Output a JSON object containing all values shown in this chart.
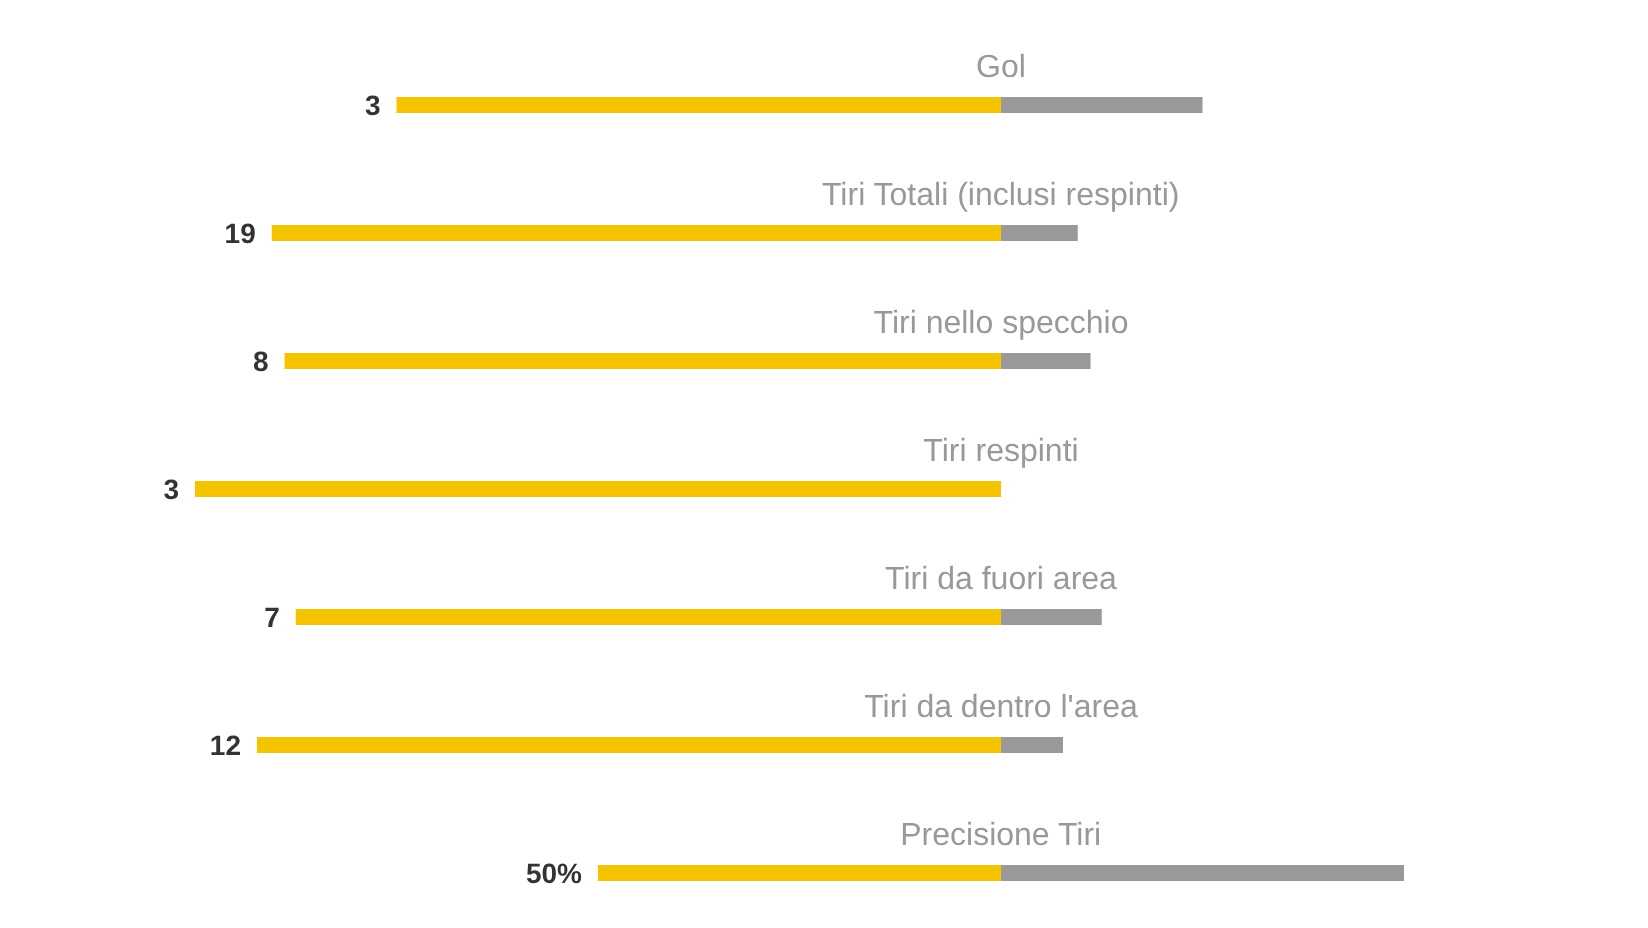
{
  "chart_data": [
    {
      "type": "bar",
      "orientation": "horizontal",
      "stacked": true,
      "categories": [
        "Gol"
      ],
      "series": [
        {
          "color": "#f5c400",
          "values": [
            3
          ],
          "value_labels": [
            "3"
          ]
        },
        {
          "color": "#999999",
          "values": [
            1
          ]
        }
      ]
    },
    {
      "type": "bar",
      "orientation": "horizontal",
      "stacked": true,
      "categories": [
        "Tiri Totali (inclusi respinti)"
      ],
      "series": [
        {
          "color": "#f5c400",
          "values": [
            19
          ],
          "value_labels": [
            "19"
          ]
        },
        {
          "color": "#999999",
          "values": [
            2
          ]
        }
      ]
    },
    {
      "type": "bar",
      "orientation": "horizontal",
      "stacked": true,
      "categories": [
        "Tiri nello specchio"
      ],
      "series": [
        {
          "color": "#f5c400",
          "values": [
            8
          ],
          "value_labels": [
            "8"
          ]
        },
        {
          "color": "#999999",
          "values": [
            1
          ]
        }
      ]
    },
    {
      "type": "bar",
      "orientation": "horizontal",
      "stacked": true,
      "categories": [
        "Tiri respinti"
      ],
      "series": [
        {
          "color": "#f5c400",
          "values": [
            3
          ],
          "value_labels": [
            "3"
          ]
        }
      ]
    },
    {
      "type": "bar",
      "orientation": "horizontal",
      "stacked": true,
      "categories": [
        "Tiri da fuori area"
      ],
      "series": [
        {
          "color": "#f5c400",
          "values": [
            7
          ],
          "value_labels": [
            "7"
          ]
        },
        {
          "color": "#999999",
          "values": [
            1
          ]
        }
      ]
    },
    {
      "type": "bar",
      "orientation": "horizontal",
      "stacked": true,
      "categories": [
        "Tiri da dentro l'area"
      ],
      "series": [
        {
          "color": "#f5c400",
          "values": [
            12
          ],
          "value_labels": [
            "12"
          ]
        },
        {
          "color": "#999999",
          "values": [
            1
          ]
        }
      ]
    },
    {
      "type": "bar",
      "orientation": "horizontal",
      "stacked": true,
      "categories": [
        "Precisione Tiri"
      ],
      "series": [
        {
          "color": "#f5c400",
          "values": [
            50
          ],
          "value_labels": [
            "50%"
          ]
        },
        {
          "color": "#999999",
          "values": [
            50
          ]
        }
      ]
    }
  ]
}
